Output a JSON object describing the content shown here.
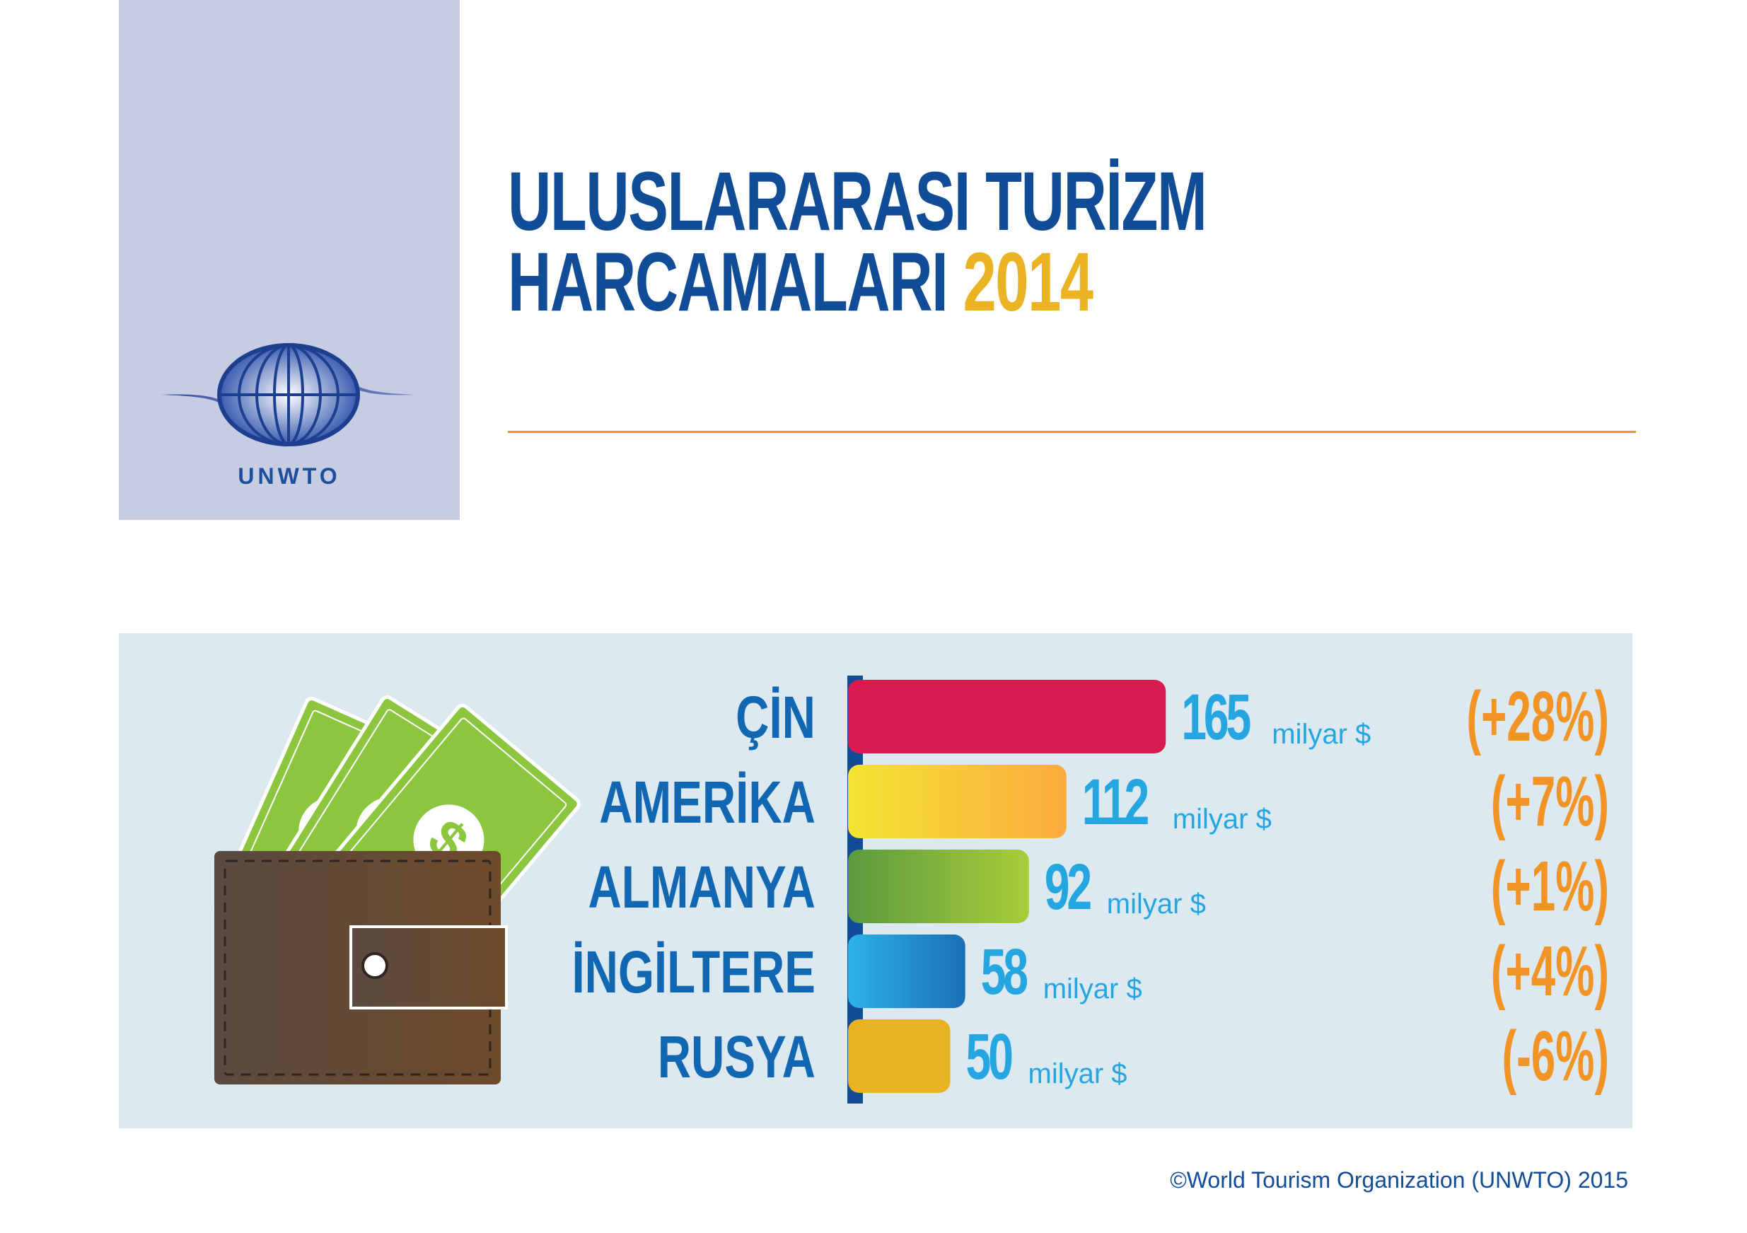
{
  "logo": {
    "text": "UNWTO"
  },
  "title": {
    "line1": "ULUSLARARASI TURİZM",
    "line2": "HARCAMALARI",
    "year": "2014"
  },
  "footer": {
    "copyright": "©World Tourism Organization (UNWTO) 2015"
  },
  "colors": {
    "title": "#114c97",
    "year": "#e9b323",
    "rule": "#f29325",
    "panel": "#dde9f0",
    "country": "#1267b2",
    "value": "#26a6e0",
    "change": "#f29325",
    "axis": "#114c97"
  },
  "icons": [
    "wallet-icon",
    "banknote-icon",
    "dollar-sign-icon",
    "globe-icon"
  ],
  "chart_data": {
    "type": "bar",
    "orientation": "horizontal",
    "unit": "milyar $",
    "categories": [
      "ÇİN",
      "AMERİKA",
      "ALMANYA",
      "İNGİLTERE",
      "RUSYA"
    ],
    "values": [
      165,
      112,
      92,
      58,
      50
    ],
    "changes": [
      "(+28%)",
      "(+7%)",
      "(+1%)",
      "(+4%)",
      "(-6%)"
    ],
    "bar_colors": [
      [
        "#d81c4f",
        "#d81c4f"
      ],
      [
        "#f4e433",
        "#fbab3f"
      ],
      [
        "#5c9a3f",
        "#a8cd3a"
      ],
      [
        "#2db2e8",
        "#1a6fb8"
      ],
      [
        "#e8b323",
        "#e8b323"
      ]
    ]
  }
}
